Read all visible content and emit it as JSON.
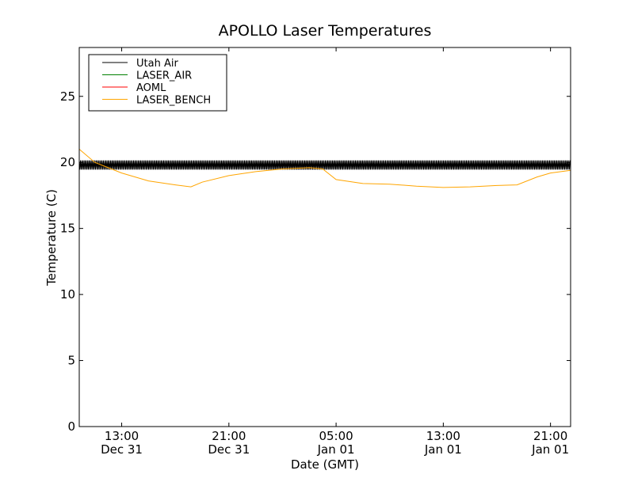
{
  "chart_data": {
    "type": "line",
    "title": "APOLLO Laser Temperatures",
    "xlabel": "Date (GMT)",
    "ylabel": "Temperature (C)",
    "ylim": [
      0,
      28.7
    ],
    "xlim": [
      "Dec 31 09:50",
      "Jan 01 22:30"
    ],
    "grid": false,
    "legend_position": "top-left",
    "y_ticks": [
      0,
      5,
      10,
      15,
      20,
      25
    ],
    "x_ticks": [
      {
        "time": "Dec 31 13:00",
        "line1": "13:00",
        "line2": "Dec 31"
      },
      {
        "time": "Dec 31 21:00",
        "line1": "21:00",
        "line2": "Dec 31"
      },
      {
        "time": "Jan 01 05:00",
        "line1": "05:00",
        "line2": "Jan 01"
      },
      {
        "time": "Jan 01 13:00",
        "line1": "13:00",
        "line2": "Jan 01"
      },
      {
        "time": "Jan 01 21:00",
        "line1": "21:00",
        "line2": "Jan 01"
      }
    ],
    "series": [
      {
        "name": "Utah Air",
        "color": "#000000",
        "style": "oscillating",
        "mean": 19.8,
        "amplitude": 0.35,
        "range_start": "Dec 31 09:50",
        "range_end": "Jan 01 22:30"
      },
      {
        "name": "LASER_AIR",
        "color": "#008000",
        "points": []
      },
      {
        "name": "AOML",
        "color": "#ff0000",
        "points": []
      },
      {
        "name": "LASER_BENCH",
        "color": "#ffa500",
        "points": [
          [
            "Dec 31 09:50",
            21.0
          ],
          [
            "Dec 31 11:00",
            20.0
          ],
          [
            "Dec 31 13:00",
            19.2
          ],
          [
            "Dec 31 15:00",
            18.6
          ],
          [
            "Dec 31 17:00",
            18.3
          ],
          [
            "Dec 31 18:10",
            18.15
          ],
          [
            "Dec 31 19:00",
            18.5
          ],
          [
            "Dec 31 21:00",
            19.0
          ],
          [
            "Dec 31 23:00",
            19.3
          ],
          [
            "Jan 01 01:00",
            19.5
          ],
          [
            "Jan 01 03:00",
            19.6
          ],
          [
            "Jan 01 04:00",
            19.5
          ],
          [
            "Jan 01 05:00",
            18.7
          ],
          [
            "Jan 01 07:00",
            18.4
          ],
          [
            "Jan 01 09:00",
            18.35
          ],
          [
            "Jan 01 11:00",
            18.2
          ],
          [
            "Jan 01 13:00",
            18.1
          ],
          [
            "Jan 01 15:00",
            18.15
          ],
          [
            "Jan 01 17:00",
            18.25
          ],
          [
            "Jan 01 18:30",
            18.3
          ],
          [
            "Jan 01 20:00",
            18.9
          ],
          [
            "Jan 01 21:00",
            19.2
          ],
          [
            "Jan 01 22:30",
            19.4
          ]
        ]
      }
    ]
  }
}
